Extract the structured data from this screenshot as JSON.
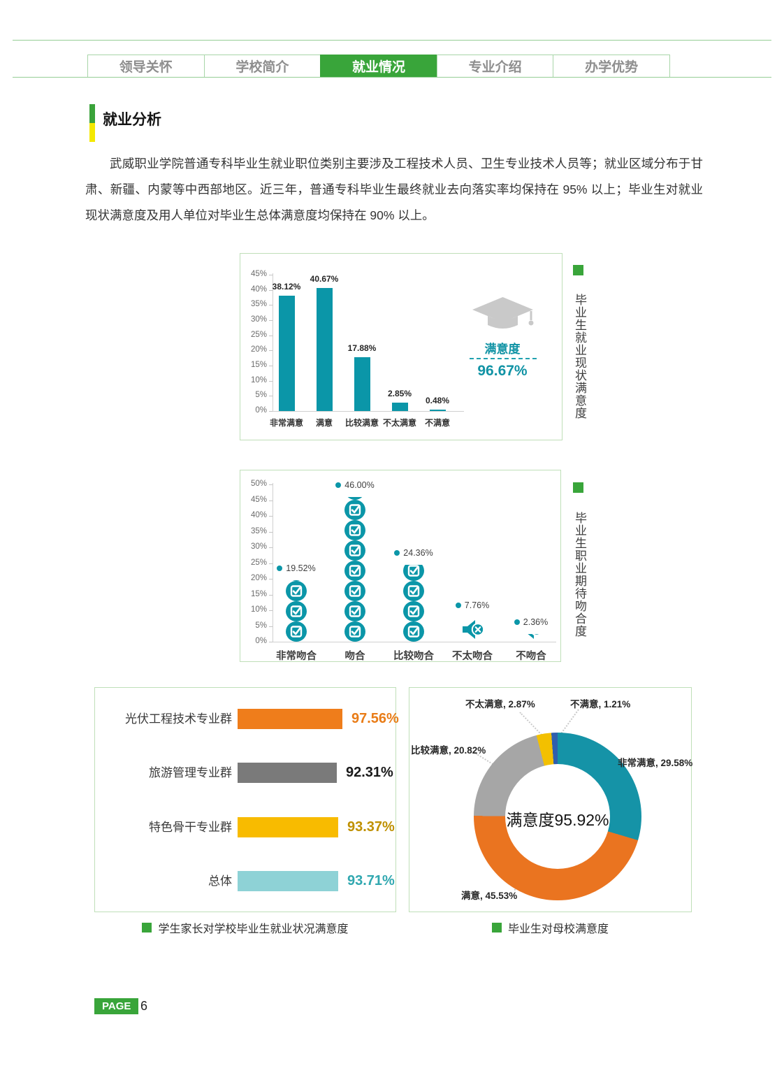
{
  "nav": {
    "tabs": [
      {
        "label": "领导关怀",
        "active": false
      },
      {
        "label": "学校简介",
        "active": false
      },
      {
        "label": "就业情况",
        "active": true
      },
      {
        "label": "专业介绍",
        "active": false
      },
      {
        "label": "办学优势",
        "active": false
      }
    ]
  },
  "section": {
    "title": "就业分析"
  },
  "intro": {
    "text": "武威职业学院普通专科毕业生就业职位类别主要涉及工程技术人员、卫生专业技术人员等；就业区域分布于甘肃、新疆、内蒙等中西部地区。近三年，普通专科毕业生最终就业去向落实率均保持在 95% 以上；毕业生对就业现状满意度及用人单位对毕业生总体满意度均保持在 90% 以上。",
    "colors": {
      "accent_green": "#39a53a",
      "accent_yellow": "#f4e800",
      "teal": "#0b96a8"
    }
  },
  "chart_data": [
    {
      "id": "employment-status-satisfaction",
      "type": "bar",
      "title_vertical": "毕业生就业现状满意度",
      "categories": [
        "非常满意",
        "满意",
        "比较满意",
        "不太满意",
        "不满意"
      ],
      "values": [
        38.12,
        40.67,
        17.88,
        2.85,
        0.48
      ],
      "value_labels": [
        "38.12%",
        "40.67%",
        "17.88%",
        "2.85%",
        "0.48%"
      ],
      "ylim": [
        0,
        45
      ],
      "ytick_labels": [
        "0%",
        "5%",
        "10%",
        "15%",
        "20%",
        "25%",
        "30%",
        "35%",
        "40%",
        "45%"
      ],
      "bar_color": "#0b96a8",
      "grid": false,
      "aside": {
        "icon": "graduation-cap-icon",
        "label": "满意度",
        "value": "96.67%"
      }
    },
    {
      "id": "career-expectation-fit",
      "type": "pictograph-bar",
      "title_vertical": "毕业生职业期待吻合度",
      "categories": [
        "非常吻合",
        "吻合",
        "比较吻合",
        "不太吻合",
        "不吻合"
      ],
      "values": [
        19.52,
        46.0,
        24.36,
        7.76,
        2.36
      ],
      "value_labels": [
        "19.52%",
        "46.00%",
        "24.36%",
        "7.76%",
        "2.36%"
      ],
      "icons": [
        "check-circle-icon",
        "check-circle-icon",
        "check-circle-icon",
        "speaker-x-icon",
        "speaker-x-icon"
      ],
      "ylim": [
        0,
        50
      ],
      "ytick_labels": [
        "0%",
        "5%",
        "10%",
        "15%",
        "20%",
        "25%",
        "30%",
        "35%",
        "40%",
        "45%",
        "50%"
      ],
      "color": "#0b96a8",
      "grid": false
    },
    {
      "id": "parent-satisfaction",
      "type": "hbar",
      "caption": "学生家长对学校毕业生就业状况满意度",
      "categories": [
        "光伏工程技术专业群",
        "旅游管理专业群",
        "特色骨干专业群",
        "总体"
      ],
      "values": [
        97.56,
        92.31,
        93.37,
        93.71
      ],
      "value_labels": [
        "97.56%",
        "92.31%",
        "93.37%",
        "93.71%"
      ],
      "bar_colors": [
        "#ef7d1b",
        "#7a7a7a",
        "#f8bb00",
        "#8ed2d6"
      ],
      "value_colors": [
        "#e97c17",
        "#1a1a1a",
        "#bf9000",
        "#31a8b0"
      ]
    },
    {
      "id": "alumni-satisfaction",
      "type": "donut",
      "caption": "毕业生对母校满意度",
      "center_label": "满意度95.92%",
      "segments": [
        {
          "label": "非常满意",
          "value": 29.58,
          "display": "非常满意, 29.58%",
          "color": "#1593a7"
        },
        {
          "label": "满意",
          "value": 45.53,
          "display": "满意, 45.53%",
          "color": "#ea7420"
        },
        {
          "label": "比较满意",
          "value": 20.82,
          "display": "比较满意, 20.82%",
          "color": "#a6a6a6"
        },
        {
          "label": "不太满意",
          "value": 2.87,
          "display": "不太满意, 2.87%",
          "color": "#f3c000"
        },
        {
          "label": "不满意",
          "value": 1.21,
          "display": "不满意, 1.21%",
          "color": "#2f5fae"
        }
      ]
    }
  ],
  "footer": {
    "page_label": "PAGE",
    "page_number": "6"
  }
}
